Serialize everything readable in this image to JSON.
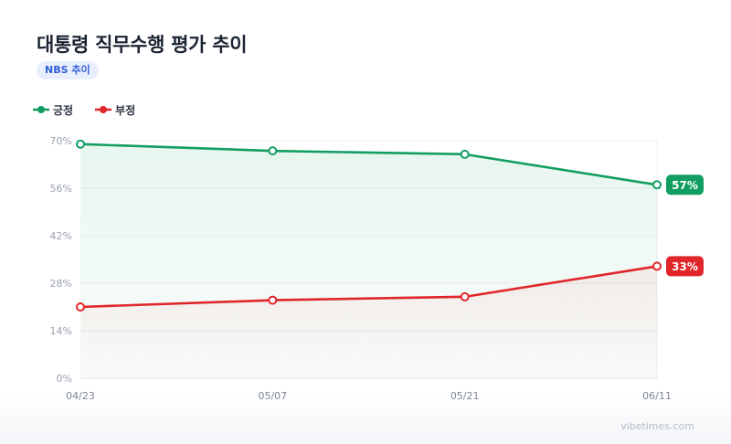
{
  "title": "대통령 직무수행 평가 추이",
  "badge": "NBS 추이",
  "watermark": "vibetimes.com",
  "colors": {
    "positive": "#129e62",
    "negative": "#e0262a",
    "badge_bg": "#e9eefc",
    "badge_text": "#2f5fd8"
  },
  "chart_data": {
    "type": "line",
    "title": "대통령 직무수행 평가 추이",
    "categories": [
      "04/23",
      "05/07",
      "05/21",
      "06/11"
    ],
    "series": [
      {
        "name": "긍정",
        "values": [
          69,
          67,
          66,
          57
        ],
        "color": "#129e62",
        "end_label": "57%"
      },
      {
        "name": "부정",
        "values": [
          21,
          23,
          24,
          33
        ],
        "color": "#e0262a",
        "end_label": "33%"
      }
    ],
    "ylim": [
      0,
      70
    ],
    "yticks": [
      "0%",
      "14%",
      "28%",
      "42%",
      "56%",
      "70%"
    ],
    "ytick_values": [
      0,
      14,
      28,
      42,
      56,
      70
    ],
    "grid": true,
    "legend": "top-left"
  }
}
